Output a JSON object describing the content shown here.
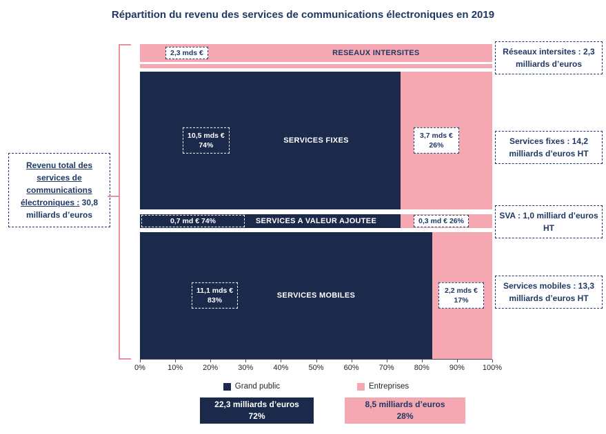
{
  "title": "Répartition du revenu des services de communications électroniques en 2019",
  "colors": {
    "navy": "#1b2a4a",
    "pink": "#f5a8b1",
    "text_navy": "#1f3864",
    "brace_pink": "#e98e9c"
  },
  "left_note": {
    "underlined": "Revenu total des services de communications électroniques :",
    "rest": "30,8 milliards d’euros"
  },
  "bands": [
    {
      "title": "RESEAUX INTERSITES",
      "value_label": "2,3 mds €",
      "side_note": "Réseaux intersites : 2,3 milliards d’euros"
    },
    {
      "title": "SERVICES FIXES",
      "dark_value": "10,5 mds €",
      "dark_pct": "74%",
      "dark_width_pct": 74,
      "pink_value": "3,7 mds €",
      "pink_pct": "26%",
      "side_note": "Services fixes : 14,2 milliards d’euros HT"
    },
    {
      "title": "SERVICES A VALEUR AJOUTEE",
      "dark_label": "0,7 md €  74%",
      "dark_width_pct": 74,
      "pink_label": "0,3 md € 26%",
      "side_note": "SVA : 1,0 milliard d’euros HT"
    },
    {
      "title": "SERVICES MOBILES",
      "dark_value": "11,1 mds €",
      "dark_pct": "83%",
      "dark_width_pct": 83,
      "pink_value": "2,2 mds €",
      "pink_pct": "17%",
      "side_note": "Services mobiles : 13,3 milliards d’euros HT"
    }
  ],
  "axis": {
    "ticks": [
      "0%",
      "10%",
      "20%",
      "30%",
      "40%",
      "50%",
      "60%",
      "70%",
      "80%",
      "90%",
      "100%"
    ]
  },
  "legend": [
    {
      "label": "Grand public",
      "color": "#1b2a4a"
    },
    {
      "label": "Entreprises",
      "color": "#f5a8b1"
    }
  ],
  "totals": [
    {
      "value": "22,3 milliards d’euros",
      "pct": "72%"
    },
    {
      "value": "8,5 milliards d’euros",
      "pct": "28%"
    }
  ],
  "chart_data": {
    "type": "bar",
    "orientation": "horizontal",
    "stacked": true,
    "title": "Répartition du revenu des services de communications électroniques en 2019",
    "categories": [
      "RESEAUX INTERSITES",
      "SERVICES FIXES",
      "SERVICES A VALEUR AJOUTEE",
      "SERVICES MOBILES"
    ],
    "series": [
      {
        "name": "Grand public",
        "color": "#1b2a4a",
        "share_pct": [
          0,
          74,
          74,
          83
        ],
        "billions_eur": [
          0,
          10.5,
          0.7,
          11.1
        ]
      },
      {
        "name": "Entreprises",
        "color": "#f5a8b1",
        "share_pct": [
          100,
          26,
          26,
          17
        ],
        "billions_eur": [
          2.3,
          3.7,
          0.3,
          2.2
        ]
      }
    ],
    "category_totals_billions_eur": [
      2.3,
      14.2,
      1.0,
      13.3
    ],
    "grand_total": {
      "label": "Revenu total des services de communications électroniques",
      "billions_eur": 30.8
    },
    "series_totals": [
      {
        "name": "Grand public",
        "billions_eur": 22.3,
        "pct": 72
      },
      {
        "name": "Entreprises",
        "billions_eur": 8.5,
        "pct": 28
      }
    ],
    "xlim": [
      0,
      100
    ],
    "x_ticks": [
      "0%",
      "10%",
      "20%",
      "30%",
      "40%",
      "50%",
      "60%",
      "70%",
      "80%",
      "90%",
      "100%"
    ],
    "legend_position": "bottom",
    "grid": false
  }
}
